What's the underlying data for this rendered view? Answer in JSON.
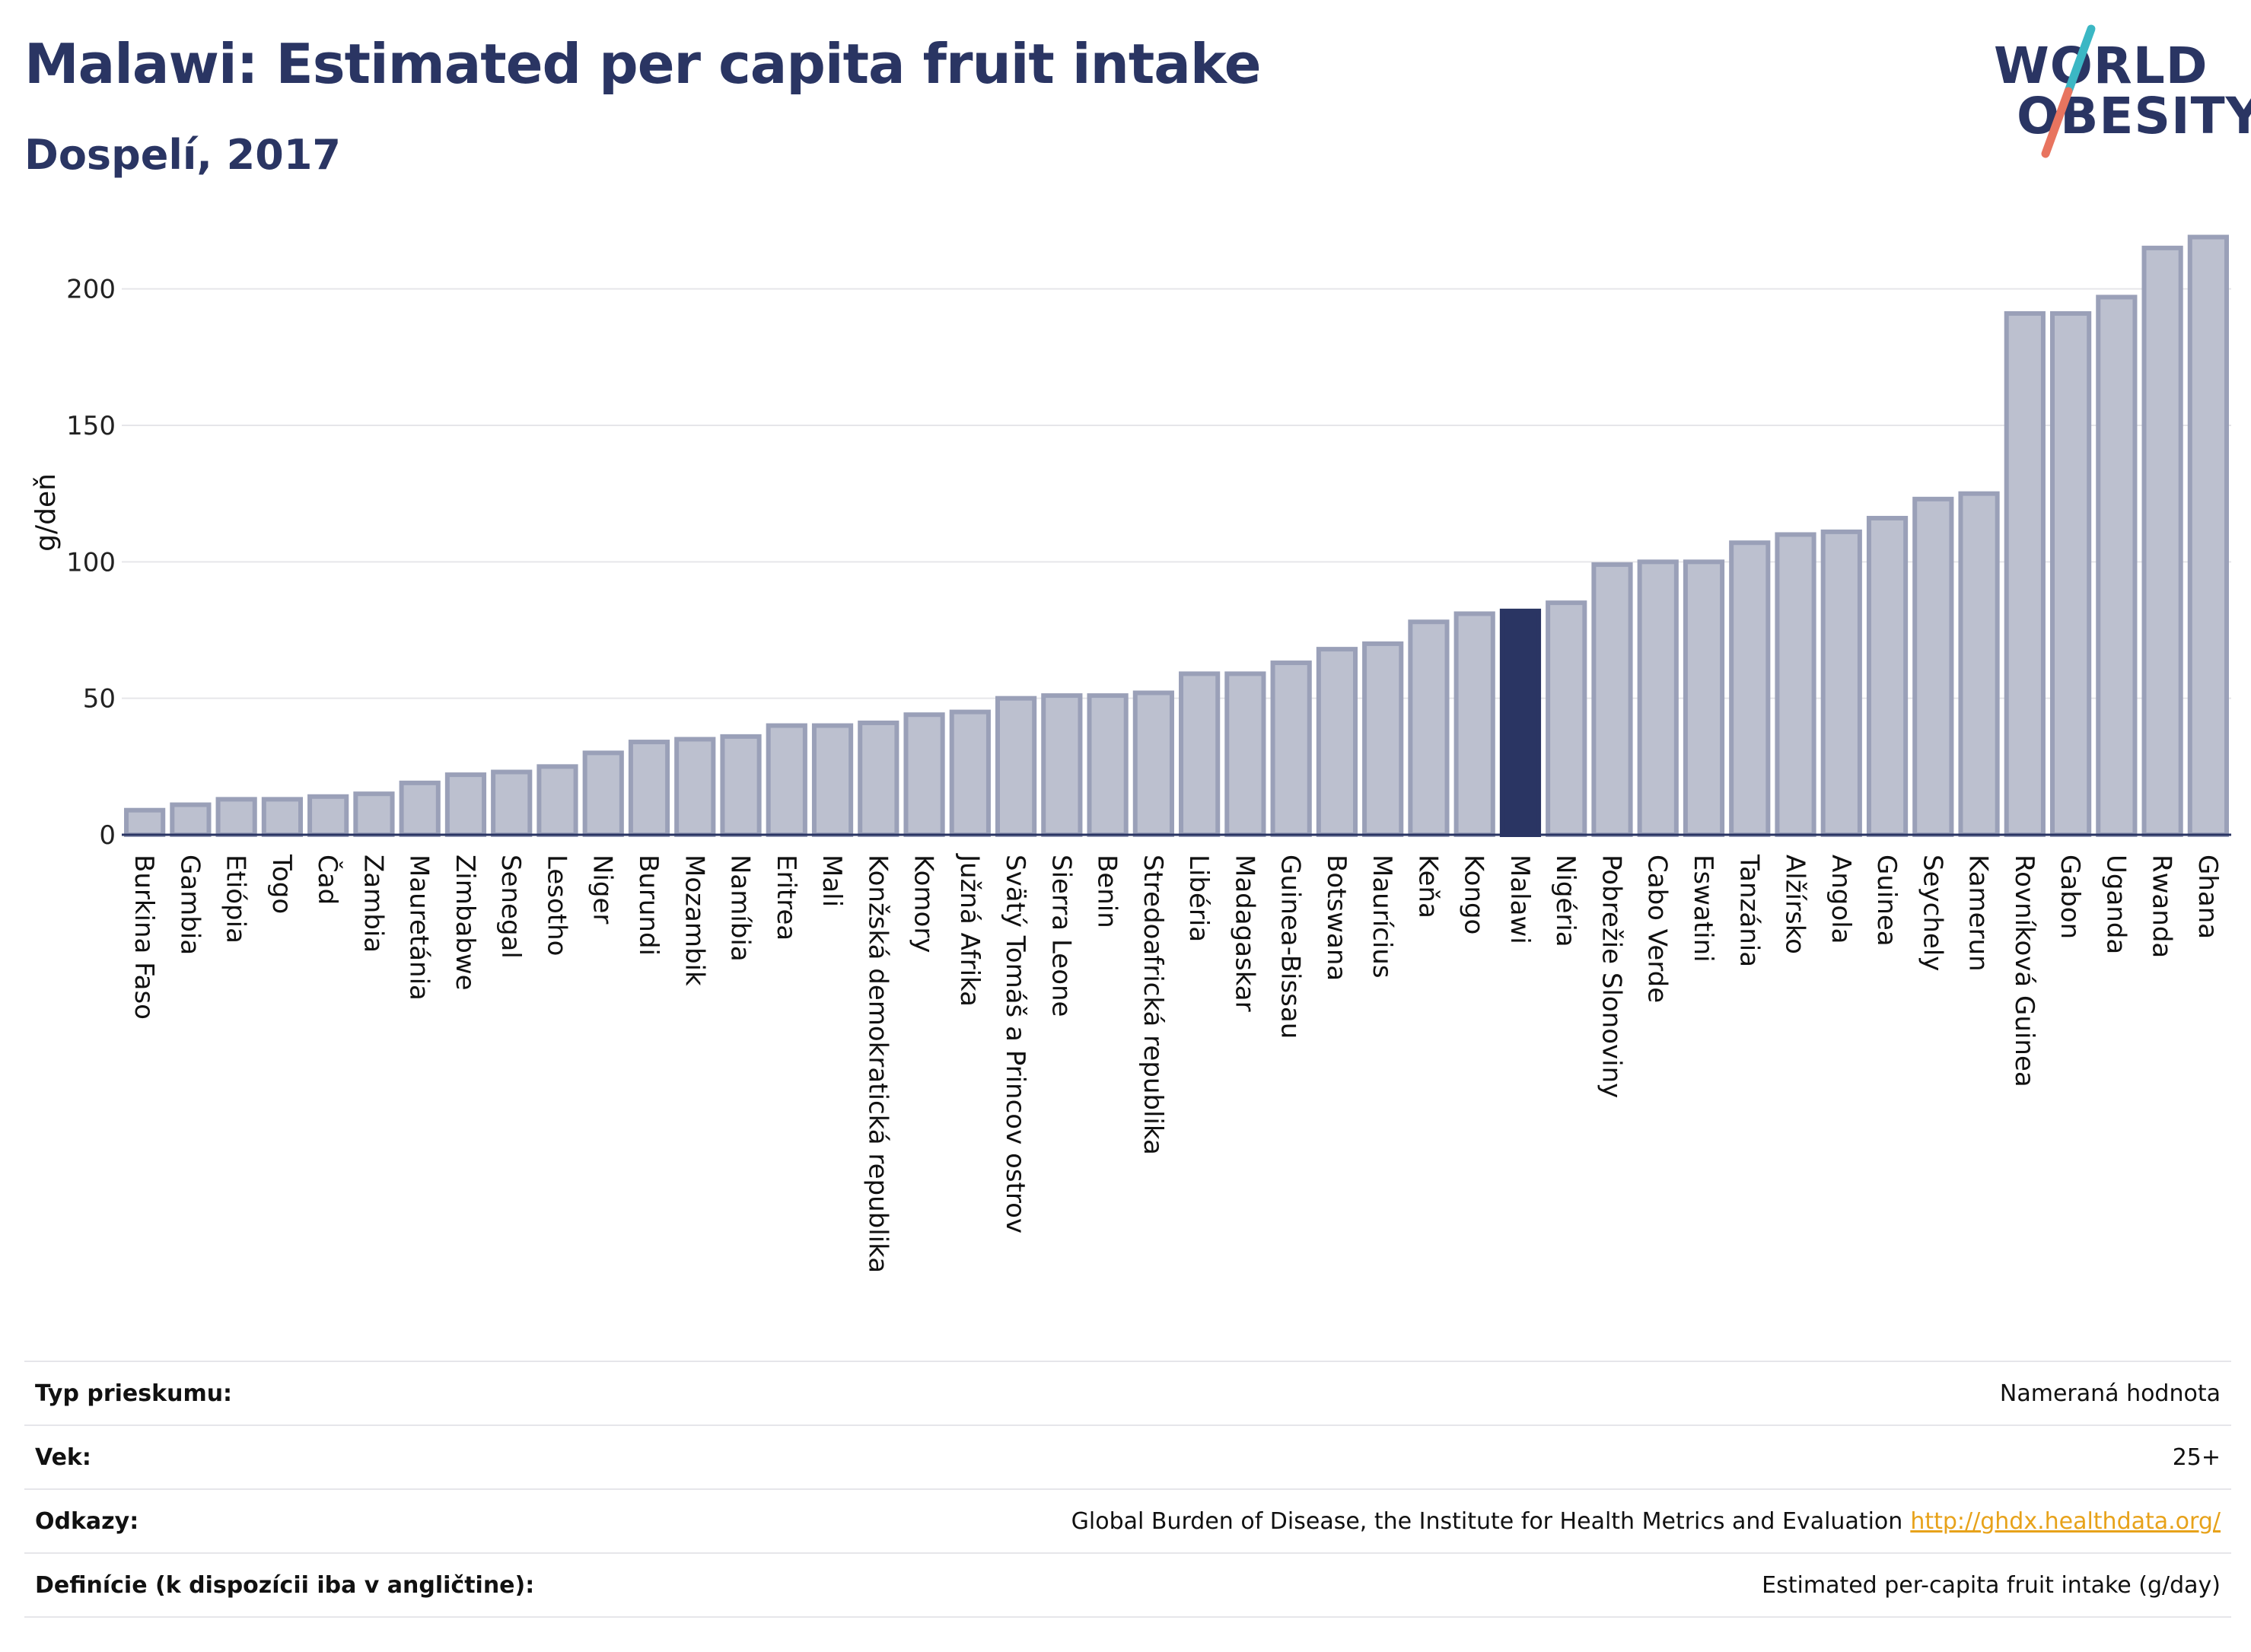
{
  "header": {
    "title": "Malawi: Estimated per capita fruit intake",
    "subtitle": "Dospelí, 2017"
  },
  "logo": {
    "line1": "WORLD",
    "line2": "OBESITY"
  },
  "chart_data": {
    "type": "bar",
    "ylabel": "g/deň",
    "ylim": [
      0,
      225
    ],
    "yticks": [
      0,
      50,
      100,
      150,
      200
    ],
    "grid": true,
    "highlight": "Malawi",
    "colors": {
      "bar": "#bcc0cf",
      "bar_border": "#9aa0b8",
      "highlight": "#2a3563",
      "grid": "#e6e6ea"
    },
    "categories": [
      "Burkina Faso",
      "Gambia",
      "Etiópia",
      "Togo",
      "Čad",
      "Zambia",
      "Mauretánia",
      "Zimbabwe",
      "Senegal",
      "Lesotho",
      "Niger",
      "Burundi",
      "Mozambik",
      "Namíbia",
      "Eritrea",
      "Mali",
      "Konžská demokratická republika",
      "Komory",
      "Južná Afrika",
      "Svätý Tomáš a Princov ostrov",
      "Sierra Leone",
      "Benin",
      "Stredoafrická republika",
      "Libéria",
      "Madagaskar",
      "Guinea-Bissau",
      "Botswana",
      "Maurícius",
      "Keňa",
      "Kongo",
      "Malawi",
      "Nigéria",
      "Pobrežie Slonoviny",
      "Cabo Verde",
      "Eswatini",
      "Tanzánia",
      "Alžírsko",
      "Angola",
      "Guinea",
      "Seychely",
      "Kamerun",
      "Rovníková Guinea",
      "Gabon",
      "Uganda",
      "Rwanda",
      "Ghana"
    ],
    "values": [
      9,
      11,
      13,
      13,
      14,
      15,
      19,
      22,
      23,
      25,
      30,
      34,
      35,
      36,
      40,
      40,
      41,
      44,
      45,
      50,
      51,
      51,
      52,
      59,
      59,
      63,
      68,
      70,
      78,
      81,
      82,
      85,
      99,
      100,
      100,
      107,
      110,
      111,
      116,
      123,
      125,
      191,
      191,
      197,
      215,
      219
    ]
  },
  "info": {
    "rows": [
      {
        "label": "Typ prieskumu:",
        "value": "Nameraná hodnota",
        "link": ""
      },
      {
        "label": "Vek:",
        "value": "25+",
        "link": ""
      },
      {
        "label": "Odkazy:",
        "value": "Global Burden of Disease, the Institute for Health Metrics and Evaluation",
        "link": "http://ghdx.healthdata.org/"
      },
      {
        "label": "Definície (k dispozícii iba v angličtine):",
        "value": "Estimated per-capita fruit intake (g/day)",
        "link": ""
      }
    ]
  }
}
